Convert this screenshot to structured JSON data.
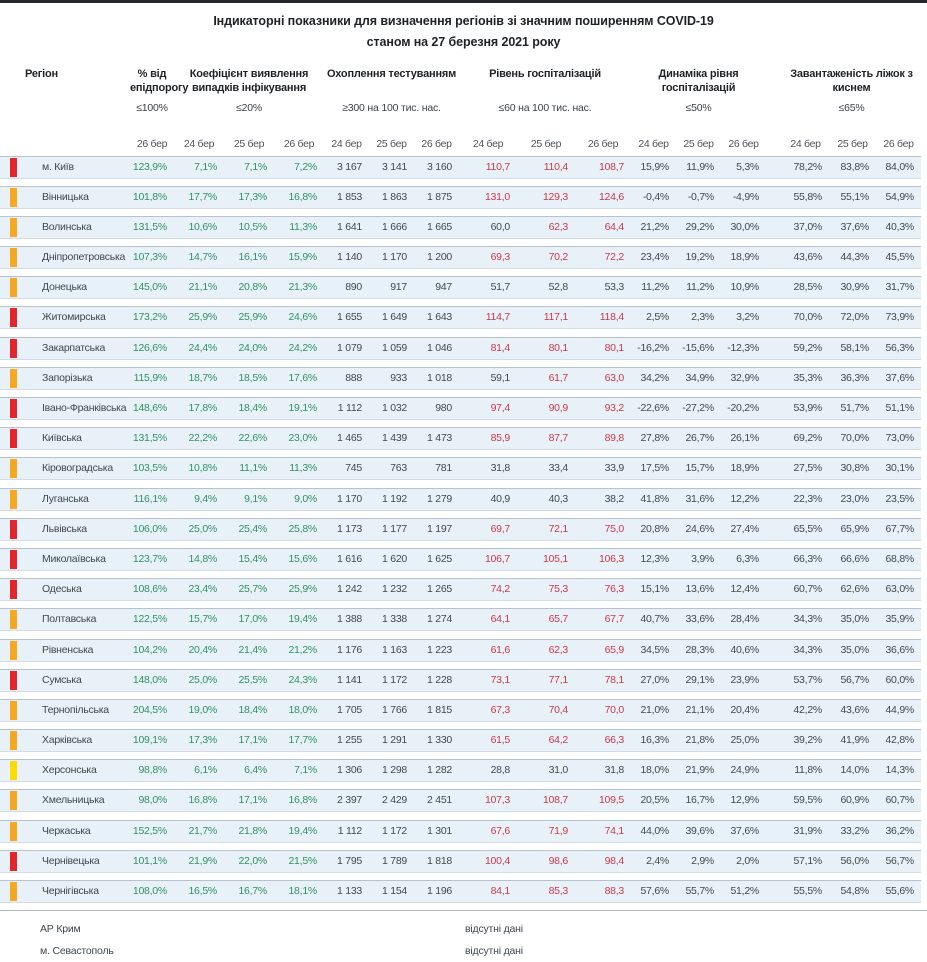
{
  "title": {
    "line1": "Індикаторні показники для визначення регіонів зі значним поширенням COVID-19",
    "line2": "станом на 27 березня 2021 року"
  },
  "columns": {
    "region_label": "Регіон",
    "groups": [
      {
        "label": "% від епідпорогу",
        "threshold": "≤100%",
        "dates": [
          "26 бер"
        ]
      },
      {
        "label": "Коефіцієнт виявлення випадків інфікування",
        "threshold": "≤20%",
        "dates": [
          "24 бер",
          "25 бер",
          "26 бер"
        ]
      },
      {
        "label": "Охоплення тестуванням",
        "threshold": "≥300 на 100 тис. нас.",
        "dates": [
          "24 бер",
          "25 бер",
          "26 бер"
        ]
      },
      {
        "label": "Рівень госпіталізацій",
        "threshold": "≤60 на 100 тис. нас.",
        "dates": [
          "24 бер",
          "25 бер",
          "26 бер"
        ]
      },
      {
        "label": "Динаміка рівня госпіталізацій",
        "threshold": "≤50%",
        "dates": [
          "24 бер",
          "25 бер",
          "26 бер"
        ]
      },
      {
        "label": "Завантаженість ліжок з киснем",
        "threshold": "≤65%",
        "dates": [
          "24 бер",
          "25 бер",
          "26 бер"
        ]
      }
    ]
  },
  "colors": {
    "marker_red": "#e5252c",
    "marker_orange": "#f7a823",
    "marker_yellow": "#ffdc00",
    "value_green": "#2e9163",
    "value_red": "#c43a4b",
    "value_dark": "#3f4853",
    "row_background": "#e9f1f8"
  },
  "rows": [
    {
      "name": "м. Київ",
      "marker": "red",
      "epid": "123,9%",
      "coef": [
        "7,1%",
        "7,1%",
        "7,2%"
      ],
      "test": [
        "3 167",
        "3 141",
        "3 160"
      ],
      "hosp": [
        "110,7",
        "110,4",
        "108,7"
      ],
      "hosp_red": [
        1,
        1,
        1
      ],
      "dyn": [
        "15,9%",
        "11,9%",
        "5,3%"
      ],
      "beds": [
        "78,2%",
        "83,8%",
        "84,0%"
      ]
    },
    {
      "name": "Вінницька",
      "marker": "orange",
      "epid": "101,8%",
      "coef": [
        "17,7%",
        "17,3%",
        "16,8%"
      ],
      "test": [
        "1 853",
        "1 863",
        "1 875"
      ],
      "hosp": [
        "131,0",
        "129,3",
        "124,6"
      ],
      "hosp_red": [
        1,
        1,
        1
      ],
      "dyn": [
        "-0,4%",
        "-0,7%",
        "-4,9%"
      ],
      "beds": [
        "55,8%",
        "55,1%",
        "54,9%"
      ]
    },
    {
      "name": "Волинська",
      "marker": "orange",
      "epid": "131,5%",
      "coef": [
        "10,6%",
        "10,5%",
        "11,3%"
      ],
      "test": [
        "1 641",
        "1 666",
        "1 665"
      ],
      "hosp": [
        "60,0",
        "62,3",
        "64,4"
      ],
      "hosp_red": [
        0,
        1,
        1
      ],
      "dyn": [
        "21,2%",
        "29,2%",
        "30,0%"
      ],
      "beds": [
        "37,0%",
        "37,6%",
        "40,3%"
      ]
    },
    {
      "name": "Дніпропетровська",
      "marker": "orange",
      "epid": "107,3%",
      "coef": [
        "14,7%",
        "16,1%",
        "15,9%"
      ],
      "test": [
        "1 140",
        "1 170",
        "1 200"
      ],
      "hosp": [
        "69,3",
        "70,2",
        "72,2"
      ],
      "hosp_red": [
        1,
        1,
        1
      ],
      "dyn": [
        "23,4%",
        "19,2%",
        "18,9%"
      ],
      "beds": [
        "43,6%",
        "44,3%",
        "45,5%"
      ]
    },
    {
      "name": "Донецька",
      "marker": "orange",
      "epid": "145,0%",
      "coef": [
        "21,1%",
        "20,8%",
        "21,3%"
      ],
      "test": [
        "890",
        "917",
        "947"
      ],
      "hosp": [
        "51,7",
        "52,8",
        "53,3"
      ],
      "hosp_red": [
        0,
        0,
        0
      ],
      "dyn": [
        "11,2%",
        "11,2%",
        "10,9%"
      ],
      "beds": [
        "28,5%",
        "30,9%",
        "31,7%"
      ]
    },
    {
      "name": "Житомирська",
      "marker": "red",
      "epid": "173,2%",
      "coef": [
        "25,9%",
        "25,9%",
        "24,6%"
      ],
      "test": [
        "1 655",
        "1 649",
        "1 643"
      ],
      "hosp": [
        "114,7",
        "117,1",
        "118,4"
      ],
      "hosp_red": [
        1,
        1,
        1
      ],
      "dyn": [
        "2,5%",
        "2,3%",
        "3,2%"
      ],
      "beds": [
        "70,0%",
        "72,0%",
        "73,9%"
      ]
    },
    {
      "name": "Закарпатська",
      "marker": "red",
      "epid": "126,6%",
      "coef": [
        "24,4%",
        "24,0%",
        "24,2%"
      ],
      "test": [
        "1 079",
        "1 059",
        "1 046"
      ],
      "hosp": [
        "81,4",
        "80,1",
        "80,1"
      ],
      "hosp_red": [
        1,
        1,
        1
      ],
      "dyn": [
        "-16,2%",
        "-15,6%",
        "-12,3%"
      ],
      "beds": [
        "59,2%",
        "58,1%",
        "56,3%"
      ]
    },
    {
      "name": "Запорізька",
      "marker": "orange",
      "epid": "115,9%",
      "coef": [
        "18,7%",
        "18,5%",
        "17,6%"
      ],
      "test": [
        "888",
        "933",
        "1 018"
      ],
      "hosp": [
        "59,1",
        "61,7",
        "63,0"
      ],
      "hosp_red": [
        0,
        1,
        1
      ],
      "dyn": [
        "34,2%",
        "34,9%",
        "32,9%"
      ],
      "beds": [
        "35,3%",
        "36,3%",
        "37,6%"
      ]
    },
    {
      "name": "Івано-Франківська",
      "marker": "red",
      "epid": "148,6%",
      "coef": [
        "17,8%",
        "18,4%",
        "19,1%"
      ],
      "test": [
        "1 112",
        "1 032",
        "980"
      ],
      "hosp": [
        "97,4",
        "90,9",
        "93,2"
      ],
      "hosp_red": [
        1,
        1,
        1
      ],
      "dyn": [
        "-22,6%",
        "-27,2%",
        "-20,2%"
      ],
      "beds": [
        "53,9%",
        "51,7%",
        "51,1%"
      ]
    },
    {
      "name": "Київська",
      "marker": "red",
      "epid": "131,5%",
      "coef": [
        "22,2%",
        "22,6%",
        "23,0%"
      ],
      "test": [
        "1 465",
        "1 439",
        "1 473"
      ],
      "hosp": [
        "85,9",
        "87,7",
        "89,8"
      ],
      "hosp_red": [
        1,
        1,
        1
      ],
      "dyn": [
        "27,8%",
        "26,7%",
        "26,1%"
      ],
      "beds": [
        "69,2%",
        "70,0%",
        "73,0%"
      ]
    },
    {
      "name": "Кіровоградська",
      "marker": "orange",
      "epid": "103,5%",
      "coef": [
        "10,8%",
        "11,1%",
        "11,3%"
      ],
      "test": [
        "745",
        "763",
        "781"
      ],
      "hosp": [
        "31,8",
        "33,4",
        "33,9"
      ],
      "hosp_red": [
        0,
        0,
        0
      ],
      "dyn": [
        "17,5%",
        "15,7%",
        "18,9%"
      ],
      "beds": [
        "27,5%",
        "30,8%",
        "30,1%"
      ]
    },
    {
      "name": "Луганська",
      "marker": "orange",
      "epid": "116,1%",
      "coef": [
        "9,4%",
        "9,1%",
        "9,0%"
      ],
      "test": [
        "1 170",
        "1 192",
        "1 279"
      ],
      "hosp": [
        "40,9",
        "40,3",
        "38,2"
      ],
      "hosp_red": [
        0,
        0,
        0
      ],
      "dyn": [
        "41,8%",
        "31,6%",
        "12,2%"
      ],
      "beds": [
        "22,3%",
        "23,0%",
        "23,5%"
      ]
    },
    {
      "name": "Львівська",
      "marker": "red",
      "epid": "106,0%",
      "coef": [
        "25,0%",
        "25,4%",
        "25,8%"
      ],
      "test": [
        "1 173",
        "1 177",
        "1 197"
      ],
      "hosp": [
        "69,7",
        "72,1",
        "75,0"
      ],
      "hosp_red": [
        1,
        1,
        1
      ],
      "dyn": [
        "20,8%",
        "24,6%",
        "27,4%"
      ],
      "beds": [
        "65,5%",
        "65,9%",
        "67,7%"
      ]
    },
    {
      "name": "Миколаївська",
      "marker": "red",
      "epid": "123,7%",
      "coef": [
        "14,8%",
        "15,4%",
        "15,6%"
      ],
      "test": [
        "1 616",
        "1 620",
        "1 625"
      ],
      "hosp": [
        "106,7",
        "105,1",
        "106,3"
      ],
      "hosp_red": [
        1,
        1,
        1
      ],
      "dyn": [
        "12,3%",
        "3,9%",
        "6,3%"
      ],
      "beds": [
        "66,3%",
        "66,6%",
        "68,8%"
      ]
    },
    {
      "name": "Одеська",
      "marker": "red",
      "epid": "108,6%",
      "coef": [
        "23,4%",
        "25,7%",
        "25,9%"
      ],
      "test": [
        "1 242",
        "1 232",
        "1 265"
      ],
      "hosp": [
        "74,2",
        "75,3",
        "76,3"
      ],
      "hosp_red": [
        1,
        1,
        1
      ],
      "dyn": [
        "15,1%",
        "13,6%",
        "12,4%"
      ],
      "beds": [
        "60,7%",
        "62,6%",
        "63,0%"
      ]
    },
    {
      "name": "Полтавська",
      "marker": "orange",
      "epid": "122,5%",
      "coef": [
        "15,7%",
        "17,0%",
        "19,4%"
      ],
      "test": [
        "1 388",
        "1 338",
        "1 274"
      ],
      "hosp": [
        "64,1",
        "65,7",
        "67,7"
      ],
      "hosp_red": [
        1,
        1,
        1
      ],
      "dyn": [
        "40,7%",
        "33,6%",
        "28,4%"
      ],
      "beds": [
        "34,3%",
        "35,0%",
        "35,9%"
      ]
    },
    {
      "name": "Рівненська",
      "marker": "orange",
      "epid": "104,2%",
      "coef": [
        "20,4%",
        "21,4%",
        "21,2%"
      ],
      "test": [
        "1 176",
        "1 163",
        "1 223"
      ],
      "hosp": [
        "61,6",
        "62,3",
        "65,9"
      ],
      "hosp_red": [
        1,
        1,
        1
      ],
      "dyn": [
        "34,5%",
        "28,3%",
        "40,6%"
      ],
      "beds": [
        "34,3%",
        "35,0%",
        "36,6%"
      ]
    },
    {
      "name": "Сумська",
      "marker": "red",
      "epid": "148,0%",
      "coef": [
        "25,0%",
        "25,5%",
        "24,3%"
      ],
      "test": [
        "1 141",
        "1 172",
        "1 228"
      ],
      "hosp": [
        "73,1",
        "77,1",
        "78,1"
      ],
      "hosp_red": [
        1,
        1,
        1
      ],
      "dyn": [
        "27,0%",
        "29,1%",
        "23,9%"
      ],
      "beds": [
        "53,7%",
        "56,7%",
        "60,0%"
      ]
    },
    {
      "name": "Тернопільська",
      "marker": "orange",
      "epid": "204,5%",
      "coef": [
        "19,0%",
        "18,4%",
        "18,0%"
      ],
      "test": [
        "1 705",
        "1 766",
        "1 815"
      ],
      "hosp": [
        "67,3",
        "70,4",
        "70,0"
      ],
      "hosp_red": [
        1,
        1,
        1
      ],
      "dyn": [
        "21,0%",
        "21,1%",
        "20,4%"
      ],
      "beds": [
        "42,2%",
        "43,6%",
        "44,9%"
      ]
    },
    {
      "name": "Харківська",
      "marker": "orange",
      "epid": "109,1%",
      "coef": [
        "17,3%",
        "17,1%",
        "17,7%"
      ],
      "test": [
        "1 255",
        "1 291",
        "1 330"
      ],
      "hosp": [
        "61,5",
        "64,2",
        "66,3"
      ],
      "hosp_red": [
        1,
        1,
        1
      ],
      "dyn": [
        "16,3%",
        "21,8%",
        "25,0%"
      ],
      "beds": [
        "39,2%",
        "41,9%",
        "42,8%"
      ]
    },
    {
      "name": "Херсонська",
      "marker": "yellow",
      "epid": "98,8%",
      "coef": [
        "6,1%",
        "6,4%",
        "7,1%"
      ],
      "test": [
        "1 306",
        "1 298",
        "1 282"
      ],
      "hosp": [
        "28,8",
        "31,0",
        "31,8"
      ],
      "hosp_red": [
        0,
        0,
        0
      ],
      "dyn": [
        "18,0%",
        "21,9%",
        "24,9%"
      ],
      "beds": [
        "11,8%",
        "14,0%",
        "14,3%"
      ]
    },
    {
      "name": "Хмельницька",
      "marker": "orange",
      "epid": "98,0%",
      "coef": [
        "16,8%",
        "17,1%",
        "16,8%"
      ],
      "test": [
        "2 397",
        "2 429",
        "2 451"
      ],
      "hosp": [
        "107,3",
        "108,7",
        "109,5"
      ],
      "hosp_red": [
        1,
        1,
        1
      ],
      "dyn": [
        "20,5%",
        "16,7%",
        "12,9%"
      ],
      "beds": [
        "59,5%",
        "60,9%",
        "60,7%"
      ]
    },
    {
      "name": "Черкаська",
      "marker": "orange",
      "epid": "152,5%",
      "coef": [
        "21,7%",
        "21,8%",
        "19,4%"
      ],
      "test": [
        "1 112",
        "1 172",
        "1 301"
      ],
      "hosp": [
        "67,6",
        "71,9",
        "74,1"
      ],
      "hosp_red": [
        1,
        1,
        1
      ],
      "dyn": [
        "44,0%",
        "39,6%",
        "37,6%"
      ],
      "beds": [
        "31,9%",
        "33,2%",
        "36,2%"
      ]
    },
    {
      "name": "Чернівецька",
      "marker": "red",
      "epid": "101,1%",
      "coef": [
        "21,9%",
        "22,0%",
        "21,5%"
      ],
      "test": [
        "1 795",
        "1 789",
        "1 818"
      ],
      "hosp": [
        "100,4",
        "98,6",
        "98,4"
      ],
      "hosp_red": [
        1,
        1,
        1
      ],
      "dyn": [
        "2,4%",
        "2,9%",
        "2,0%"
      ],
      "beds": [
        "57,1%",
        "56,0%",
        "56,7%"
      ]
    },
    {
      "name": "Чернігівська",
      "marker": "orange",
      "epid": "108,0%",
      "coef": [
        "16,5%",
        "16,7%",
        "18,1%"
      ],
      "test": [
        "1 133",
        "1 154",
        "1 196"
      ],
      "hosp": [
        "84,1",
        "85,3",
        "88,3"
      ],
      "hosp_red": [
        1,
        1,
        1
      ],
      "dyn": [
        "57,6%",
        "55,7%",
        "51,2%"
      ],
      "beds": [
        "55,5%",
        "54,8%",
        "55,6%"
      ]
    }
  ],
  "no_data_rows": [
    {
      "name": "АР Крим",
      "note": "відсутні дані"
    },
    {
      "name": "м. Севастополь",
      "note": "відсутні дані"
    }
  ]
}
